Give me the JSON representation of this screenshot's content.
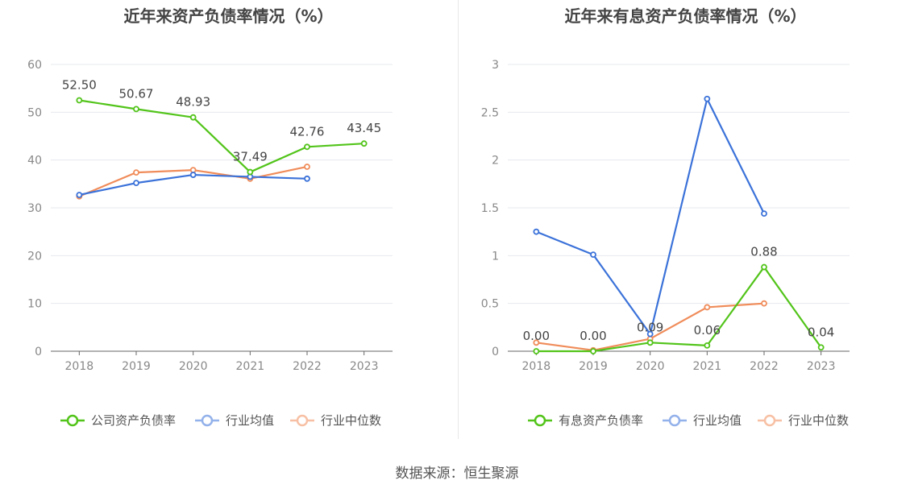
{
  "source": "数据来源：恒生聚源",
  "chart_data": [
    {
      "type": "line",
      "title": "近年来资产负债率情况（%）",
      "categories": [
        "2018",
        "2019",
        "2020",
        "2021",
        "2022",
        "2023"
      ],
      "ylim": [
        0,
        60
      ],
      "yticks": [
        "0",
        "10",
        "20",
        "30",
        "40",
        "50",
        "60"
      ],
      "legend_position": "bottom",
      "grid": true,
      "series": [
        {
          "name": "公司资产负债率",
          "color": "#52c41a",
          "values": [
            52.5,
            50.67,
            48.93,
            37.49,
            42.76,
            43.45
          ],
          "labels": [
            "52.50",
            "50.67",
            "48.93",
            "37.49",
            "42.76",
            "43.45"
          ]
        },
        {
          "name": "行业均值",
          "color": "#3b72d9",
          "values": [
            32.7,
            35.2,
            36.9,
            36.5,
            36.1,
            null
          ]
        },
        {
          "name": "行业中位数",
          "color": "#f08c5a",
          "values": [
            32.4,
            37.4,
            37.9,
            36.1,
            38.6,
            null
          ]
        }
      ]
    },
    {
      "type": "line",
      "title": "近年来有息资产负债率情况（%）",
      "categories": [
        "2018",
        "2019",
        "2020",
        "2021",
        "2022",
        "2023"
      ],
      "ylim": [
        0,
        3
      ],
      "yticks": [
        "0",
        "0.5",
        "1",
        "1.5",
        "2",
        "2.5",
        "3"
      ],
      "legend_position": "bottom",
      "grid": true,
      "series": [
        {
          "name": "有息资产负债率",
          "color": "#52c41a",
          "values": [
            0.0,
            0.0,
            0.09,
            0.06,
            0.88,
            0.04
          ],
          "labels": [
            "0.00",
            "0.00",
            "0.09",
            "0.06",
            "0.88",
            "0.04"
          ]
        },
        {
          "name": "行业均值",
          "color": "#3b72d9",
          "values": [
            1.25,
            1.01,
            0.18,
            2.64,
            1.44,
            null
          ]
        },
        {
          "name": "行业中位数",
          "color": "#f08c5a",
          "values": [
            0.09,
            0.01,
            0.13,
            0.46,
            0.5,
            null
          ]
        }
      ]
    }
  ]
}
